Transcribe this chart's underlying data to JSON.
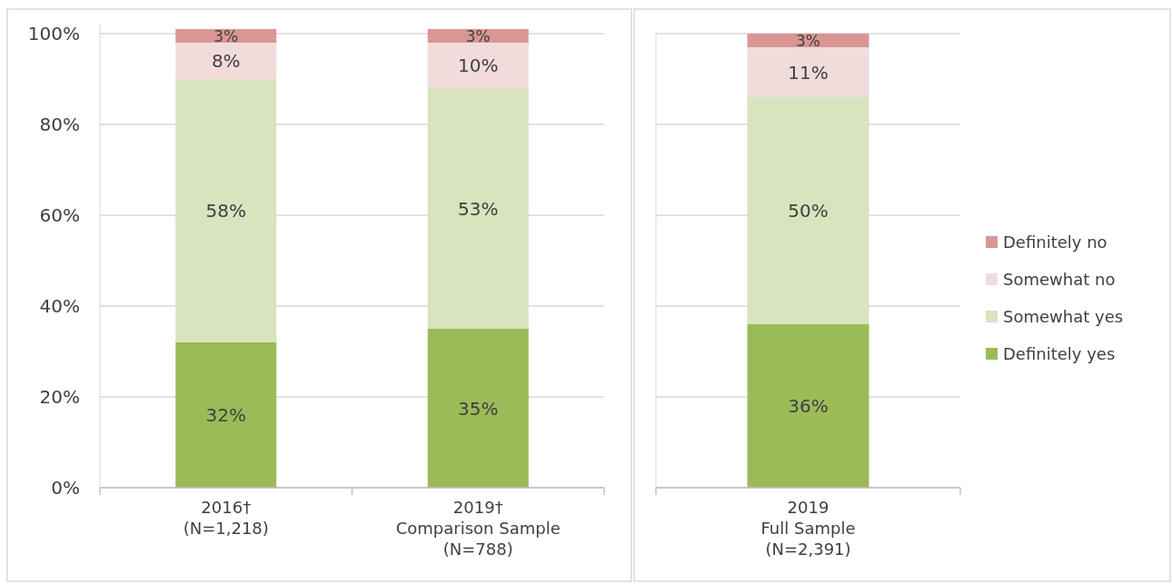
{
  "chart_data": [
    {
      "type": "bar",
      "stacked": true,
      "categories": [
        "2016†\n(N=1,218)",
        "2019†\nComparison Sample\n(N=788)"
      ],
      "series": [
        {
          "color": "#9bbb59",
          "values": [
            32,
            35
          ],
          "value_labels": [
            "32%",
            "35%"
          ]
        },
        {
          "color": "#d7e4bd",
          "values": [
            58,
            53
          ],
          "value_labels": [
            "58%",
            "53%"
          ]
        },
        {
          "color": "#f2dcdb",
          "values": [
            8,
            10
          ],
          "value_labels": [
            "8%",
            "10%"
          ]
        },
        {
          "color": "#d99694",
          "values": [
            3,
            3
          ],
          "value_labels": [
            "3%",
            "3%"
          ]
        }
      ],
      "ylim": [
        0,
        102
      ],
      "yticks": [
        {
          "value": 0,
          "label": "0%"
        },
        {
          "value": 20,
          "label": "20%"
        },
        {
          "value": 40,
          "label": "40%"
        },
        {
          "value": 60,
          "label": "60%"
        },
        {
          "value": 80,
          "label": "80%"
        },
        {
          "value": 100,
          "label": "100%"
        }
      ],
      "grid": "y",
      "legend": false
    },
    {
      "type": "bar",
      "stacked": true,
      "categories": [
        "2019\nFull Sample\n(N=2,391)"
      ],
      "series": [
        {
          "name": "Definitely yes",
          "color": "#9bbb59",
          "values": [
            36
          ],
          "value_labels": [
            "36%"
          ]
        },
        {
          "name": "Somewhat yes",
          "color": "#d7e4bd",
          "values": [
            50
          ],
          "value_labels": [
            "50%"
          ]
        },
        {
          "name": "Somewhat no",
          "color": "#f2dcdb",
          "values": [
            11
          ],
          "value_labels": [
            "11%"
          ]
        },
        {
          "name": "Definitely no",
          "color": "#d99694",
          "values": [
            3
          ],
          "value_labels": [
            "3%"
          ]
        }
      ],
      "ylim": [
        0,
        100
      ],
      "yticks": [
        {
          "value": 0,
          "label": null
        },
        {
          "value": 20,
          "label": null
        },
        {
          "value": 40,
          "label": null
        },
        {
          "value": 60,
          "label": null
        },
        {
          "value": 80,
          "label": null
        },
        {
          "value": 100,
          "label": null
        }
      ],
      "grid": "y",
      "tick_labels": "x",
      "legend": "right"
    }
  ]
}
